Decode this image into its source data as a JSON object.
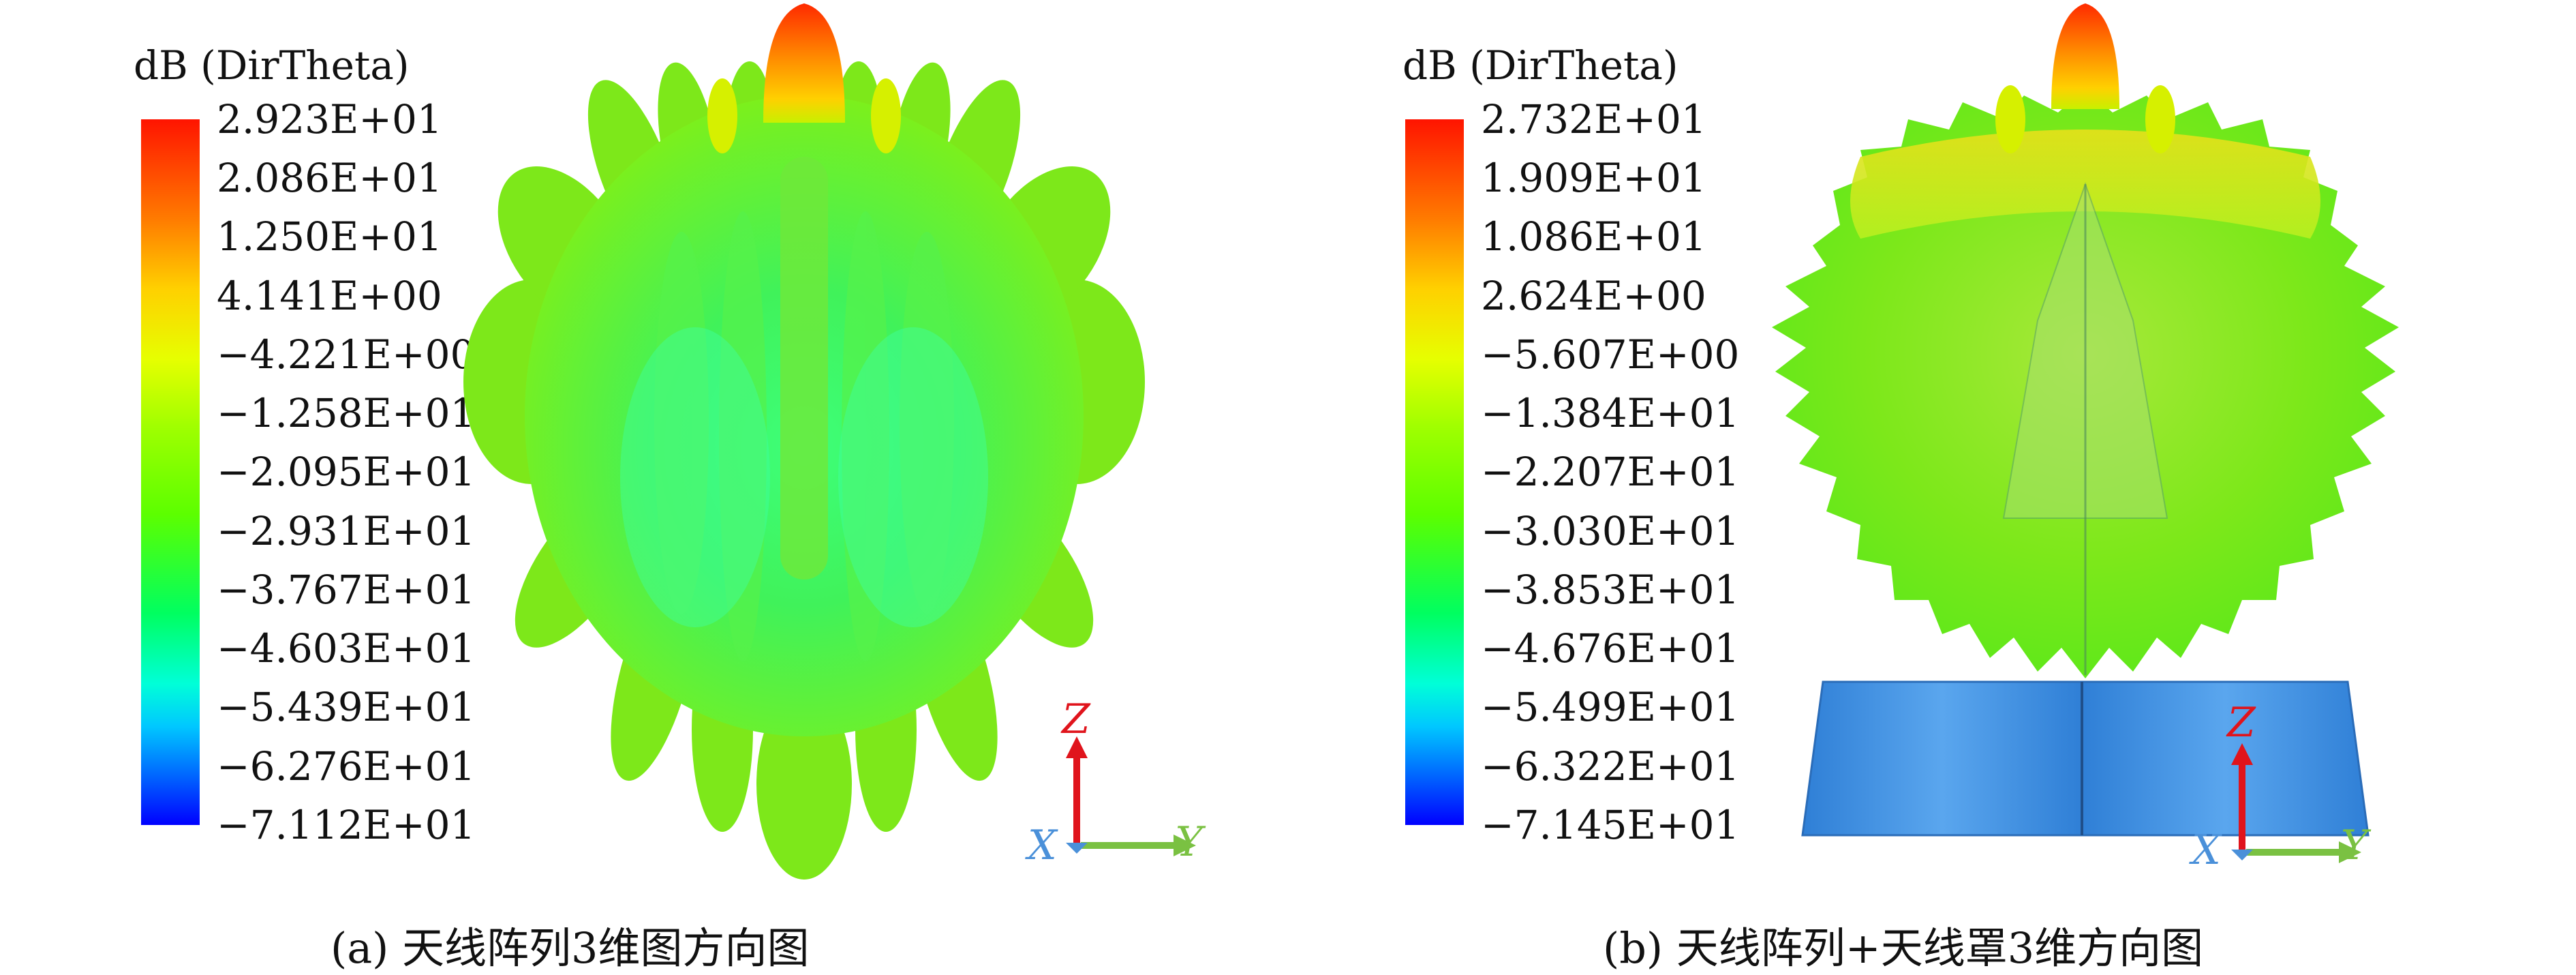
{
  "panels": [
    {
      "legend_title": "dB (DirTheta)",
      "ticks": [
        "2.923E+01",
        "2.086E+01",
        "1.250E+01",
        "4.141E+00",
        "−4.221E+00",
        "−1.258E+01",
        "−2.095E+01",
        "−2.931E+01",
        "−3.767E+01",
        "−4.603E+01",
        "−5.439E+01",
        "−6.276E+01",
        "−7.112E+01"
      ],
      "caption": "(a) 天线阵列3维图方向图",
      "axes": {
        "z": "Z",
        "x": "X",
        "y": "Y"
      }
    },
    {
      "legend_title": "dB (DirTheta)",
      "ticks": [
        "2.732E+01",
        "1.909E+01",
        "1.086E+01",
        "2.624E+00",
        "−5.607E+00",
        "−1.384E+01",
        "−2.207E+01",
        "−3.030E+01",
        "−3.853E+01",
        "−4.676E+01",
        "−5.499E+01",
        "−6.322E+01",
        "−7.145E+01"
      ],
      "caption": "(b) 天线阵列+天线罩3维方向图",
      "axes": {
        "z": "Z",
        "x": "X",
        "y": "Y"
      }
    }
  ],
  "colors": {
    "axis_z": "#e0141c",
    "axis_y": "#7ac142",
    "axis_x": "#4a90d9",
    "radome": "#3d8fe0"
  }
}
